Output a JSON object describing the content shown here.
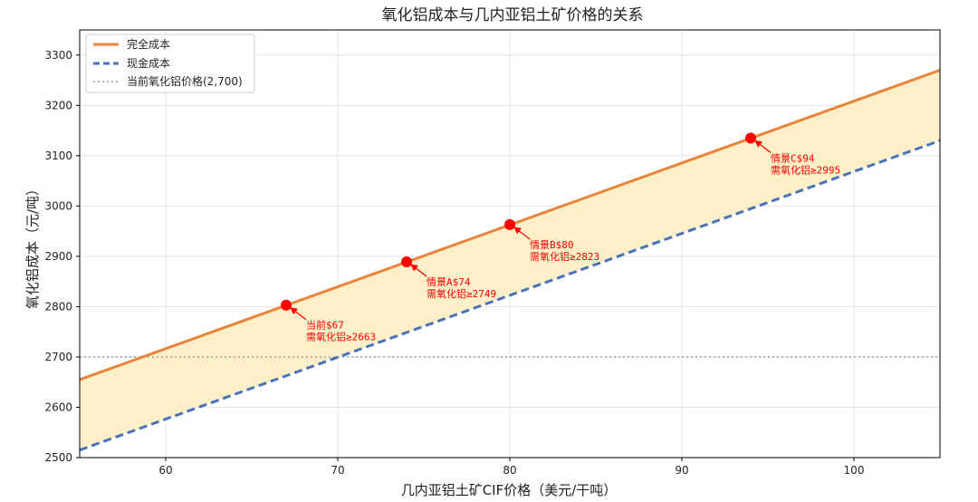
{
  "chart_data": {
    "type": "line",
    "title": "氧化铝成本与几内亚铝土矿价格的关系",
    "xlabel": "几内亚铝土矿CIF价格（美元/干吨）",
    "ylabel": "氧化铝成本（元/吨）",
    "xlim": [
      55,
      105
    ],
    "ylim": [
      2500,
      3350
    ],
    "xticks": [
      60,
      70,
      80,
      90,
      100
    ],
    "yticks": [
      2500,
      2600,
      2700,
      2800,
      2900,
      3000,
      3100,
      3200,
      3300
    ],
    "grid": true,
    "legend_position": "top-left",
    "series": [
      {
        "name": "完全成本",
        "style": "solid",
        "color": "#e8843c",
        "x": [
          55,
          105
        ],
        "y": [
          2655,
          3270
        ]
      },
      {
        "name": "现金成本",
        "style": "dashed",
        "color": "#4a72b8",
        "x": [
          55,
          105
        ],
        "y": [
          2515,
          3130
        ]
      }
    ],
    "reference_line": {
      "name": "当前氧化铝价格(2,700)",
      "y": 2700,
      "color": "#999999",
      "style": "dotted"
    },
    "fill_between": {
      "color": "#fdf0c8"
    },
    "points": [
      {
        "x": 67,
        "y": 2803,
        "label_line1": "当前$67",
        "label_line2": "需氧化铝≥2663"
      },
      {
        "x": 74,
        "y": 2889,
        "label_line1": "情景A$74",
        "label_line2": "需氧化铝≥2749"
      },
      {
        "x": 80,
        "y": 2963,
        "label_line1": "情景B$80",
        "label_line2": "需氧化铝≥2823"
      },
      {
        "x": 94,
        "y": 3135,
        "label_line1": "情景C$94",
        "label_line2": "需氧化铝≥2995"
      }
    ],
    "point_color": "#ff0000"
  }
}
